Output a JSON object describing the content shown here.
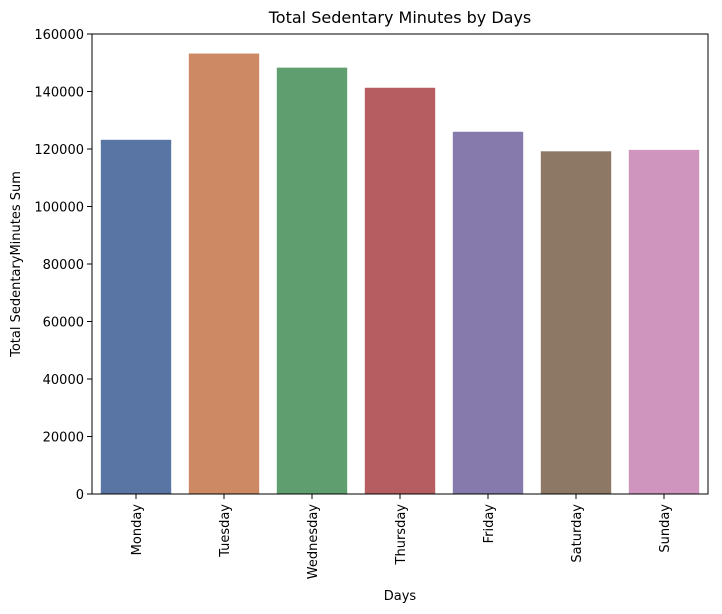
{
  "chart_data": {
    "type": "bar",
    "title": "Total Sedentary Minutes by Days",
    "xlabel": "Days",
    "ylabel": "Total SedentaryMinutes Sum",
    "categories": [
      "Monday",
      "Tuesday",
      "Wednesday",
      "Thursday",
      "Friday",
      "Saturday",
      "Sunday"
    ],
    "values": [
      123200,
      153200,
      148300,
      141300,
      126000,
      119200,
      119700
    ],
    "colors": [
      "#5975a4",
      "#cc8963",
      "#5f9e6e",
      "#b55d60",
      "#857aab",
      "#8d7866",
      "#d095bf"
    ],
    "ylim": [
      0,
      160000
    ],
    "yticks": [
      0,
      20000,
      40000,
      60000,
      80000,
      100000,
      120000,
      140000,
      160000
    ],
    "grid": false,
    "legend": "none"
  }
}
